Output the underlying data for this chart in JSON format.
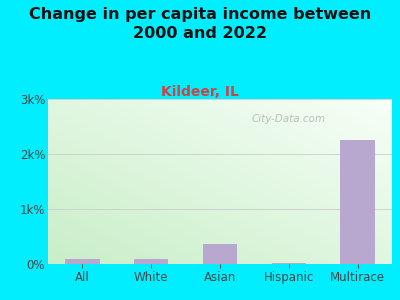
{
  "title": "Change in per capita income between\n2000 and 2022",
  "subtitle": "Kildeer, IL",
  "categories": [
    "All",
    "White",
    "Asian",
    "Hispanic",
    "Multirace"
  ],
  "values": [
    95,
    100,
    370,
    15,
    2250
  ],
  "bar_color": "#b8a8d0",
  "background_color": "#00eeff",
  "plot_bg_topleft": "#c8eec8",
  "plot_bg_bottomright": "#f8fff8",
  "title_color": "#111111",
  "subtitle_color": "#cc4444",
  "tick_color": "#444444",
  "ytick_labels": [
    "0%",
    "1k%",
    "2k%",
    "3k%"
  ],
  "ytick_values": [
    0,
    1000,
    2000,
    3000
  ],
  "ylim": [
    0,
    3000
  ],
  "watermark": "City-Data.com",
  "title_fontsize": 11.5,
  "subtitle_fontsize": 10,
  "tick_fontsize": 8.5
}
